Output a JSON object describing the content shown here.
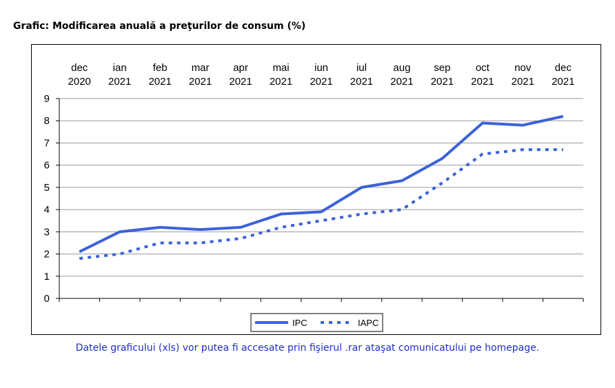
{
  "title": "Grafic: Modificarea anuală a preţurilor de consum (%)",
  "footer": "Datele graficului (xls) vor putea fi accesate prin fişierul .rar  ataşat comunicatului pe homepage.",
  "colors": {
    "series": "#3b62d9",
    "grid": "#9a9a9a",
    "axis": "#000000"
  },
  "chart_data": {
    "type": "line",
    "categories": [
      [
        "dec",
        "2020"
      ],
      [
        "ian",
        "2021"
      ],
      [
        "feb",
        "2021"
      ],
      [
        "mar",
        "2021"
      ],
      [
        "apr",
        "2021"
      ],
      [
        "mai",
        "2021"
      ],
      [
        "iun",
        "2021"
      ],
      [
        "iul",
        "2021"
      ],
      [
        "aug",
        "2021"
      ],
      [
        "sep",
        "2021"
      ],
      [
        "oct",
        "2021"
      ],
      [
        "nov",
        "2021"
      ],
      [
        "dec",
        "2021"
      ]
    ],
    "series": [
      {
        "name": "IPC",
        "style": "solid",
        "values": [
          2.1,
          3.0,
          3.2,
          3.1,
          3.2,
          3.8,
          3.9,
          5.0,
          5.3,
          6.3,
          7.9,
          7.8,
          8.2
        ]
      },
      {
        "name": "IAPC",
        "style": "dotted",
        "values": [
          1.8,
          2.0,
          2.5,
          2.5,
          2.7,
          3.2,
          3.5,
          3.8,
          4.0,
          5.2,
          6.5,
          6.7,
          6.7
        ]
      }
    ],
    "ylim": [
      0,
      9
    ],
    "yticks": [
      0,
      1,
      2,
      3,
      4,
      5,
      6,
      7,
      8,
      9
    ],
    "grid": true,
    "legend": "bottom-center",
    "xlabel": "",
    "ylabel": ""
  }
}
